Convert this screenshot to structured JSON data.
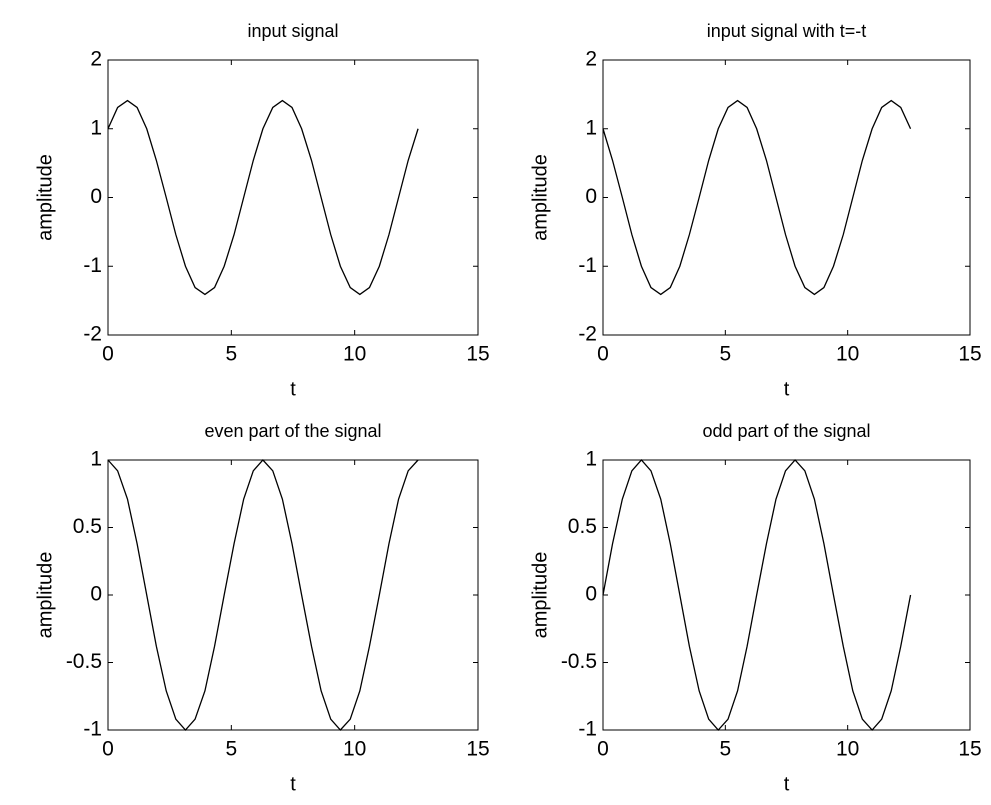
{
  "chart_data": [
    {
      "type": "line",
      "title": "input signal",
      "xlabel": "t",
      "ylabel": "amplitude",
      "color": "#000000",
      "x": [
        0,
        0.39,
        0.79,
        1.18,
        1.57,
        1.96,
        2.36,
        2.75,
        3.14,
        3.53,
        3.93,
        4.32,
        4.71,
        5.11,
        5.5,
        5.89,
        6.28,
        6.68,
        7.07,
        7.46,
        7.85,
        8.25,
        8.64,
        9.03,
        9.42,
        9.82,
        10.21,
        10.6,
        11.0,
        11.39,
        11.78,
        12.17,
        12.57
      ],
      "values": [
        1,
        1.31,
        1.41,
        1.31,
        1,
        0.54,
        0,
        -0.54,
        -1,
        -1.31,
        -1.41,
        -1.31,
        -1,
        -0.54,
        0,
        0.54,
        1,
        1.31,
        1.41,
        1.31,
        1,
        0.54,
        0,
        -0.54,
        -1,
        -1.31,
        -1.41,
        -1.31,
        -1,
        -0.54,
        0,
        0.54,
        1
      ],
      "xlim": [
        0,
        15
      ],
      "xticks": [
        0,
        5,
        10,
        15
      ],
      "ylim": [
        -2,
        2
      ],
      "yticks": [
        -2,
        -1,
        0,
        1,
        2
      ]
    },
    {
      "type": "line",
      "title": "input signal with t=-t",
      "xlabel": "t",
      "ylabel": "amplitude",
      "color": "#000000",
      "x": [
        0,
        0.39,
        0.79,
        1.18,
        1.57,
        1.96,
        2.36,
        2.75,
        3.14,
        3.53,
        3.93,
        4.32,
        4.71,
        5.11,
        5.5,
        5.89,
        6.28,
        6.68,
        7.07,
        7.46,
        7.85,
        8.25,
        8.64,
        9.03,
        9.42,
        9.82,
        10.21,
        10.6,
        11.0,
        11.39,
        11.78,
        12.17,
        12.57
      ],
      "values": [
        1,
        0.54,
        0,
        -0.54,
        -1,
        -1.31,
        -1.41,
        -1.31,
        -1,
        -0.54,
        0,
        0.54,
        1,
        1.31,
        1.41,
        1.31,
        1,
        0.54,
        0,
        -0.54,
        -1,
        -1.31,
        -1.41,
        -1.31,
        -1,
        -0.54,
        0,
        0.54,
        1,
        1.31,
        1.41,
        1.31,
        1
      ],
      "xlim": [
        0,
        15
      ],
      "xticks": [
        0,
        5,
        10,
        15
      ],
      "ylim": [
        -2,
        2
      ],
      "yticks": [
        -2,
        -1,
        0,
        1,
        2
      ]
    },
    {
      "type": "line",
      "title": "even part of the signal",
      "xlabel": "t",
      "ylabel": "amplitude",
      "color": "#000000",
      "x": [
        0,
        0.39,
        0.79,
        1.18,
        1.57,
        1.96,
        2.36,
        2.75,
        3.14,
        3.53,
        3.93,
        4.32,
        4.71,
        5.11,
        5.5,
        5.89,
        6.28,
        6.68,
        7.07,
        7.46,
        7.85,
        8.25,
        8.64,
        9.03,
        9.42,
        9.82,
        10.21,
        10.6,
        11.0,
        11.39,
        11.78,
        12.17,
        12.57
      ],
      "values": [
        1,
        0.92,
        0.71,
        0.38,
        0,
        -0.38,
        -0.71,
        -0.92,
        -1,
        -0.92,
        -0.71,
        -0.38,
        0,
        0.38,
        0.71,
        0.92,
        1,
        0.92,
        0.71,
        0.38,
        0,
        -0.38,
        -0.71,
        -0.92,
        -1,
        -0.92,
        -0.71,
        -0.38,
        0,
        0.38,
        0.71,
        0.92,
        1
      ],
      "xlim": [
        0,
        15
      ],
      "xticks": [
        0,
        5,
        10,
        15
      ],
      "ylim": [
        -1,
        1
      ],
      "yticks": [
        -1,
        -0.5,
        0,
        0.5,
        1
      ]
    },
    {
      "type": "line",
      "title": "odd part of the signal",
      "xlabel": "t",
      "ylabel": "amplitude",
      "color": "#000000",
      "x": [
        0,
        0.39,
        0.79,
        1.18,
        1.57,
        1.96,
        2.36,
        2.75,
        3.14,
        3.53,
        3.93,
        4.32,
        4.71,
        5.11,
        5.5,
        5.89,
        6.28,
        6.68,
        7.07,
        7.46,
        7.85,
        8.25,
        8.64,
        9.03,
        9.42,
        9.82,
        10.21,
        10.6,
        11.0,
        11.39,
        11.78,
        12.17,
        12.57
      ],
      "values": [
        0,
        0.38,
        0.71,
        0.92,
        1,
        0.92,
        0.71,
        0.38,
        0,
        -0.38,
        -0.71,
        -0.92,
        -1,
        -0.92,
        -0.71,
        -0.38,
        0,
        0.38,
        0.71,
        0.92,
        1,
        0.92,
        0.71,
        0.38,
        0,
        -0.38,
        -0.71,
        -0.92,
        -1,
        -0.92,
        -0.71,
        -0.38,
        0
      ],
      "xlim": [
        0,
        15
      ],
      "xticks": [
        0,
        5,
        10,
        15
      ],
      "ylim": [
        -1,
        1
      ],
      "yticks": [
        -1,
        -0.5,
        0,
        0.5,
        1
      ]
    }
  ]
}
